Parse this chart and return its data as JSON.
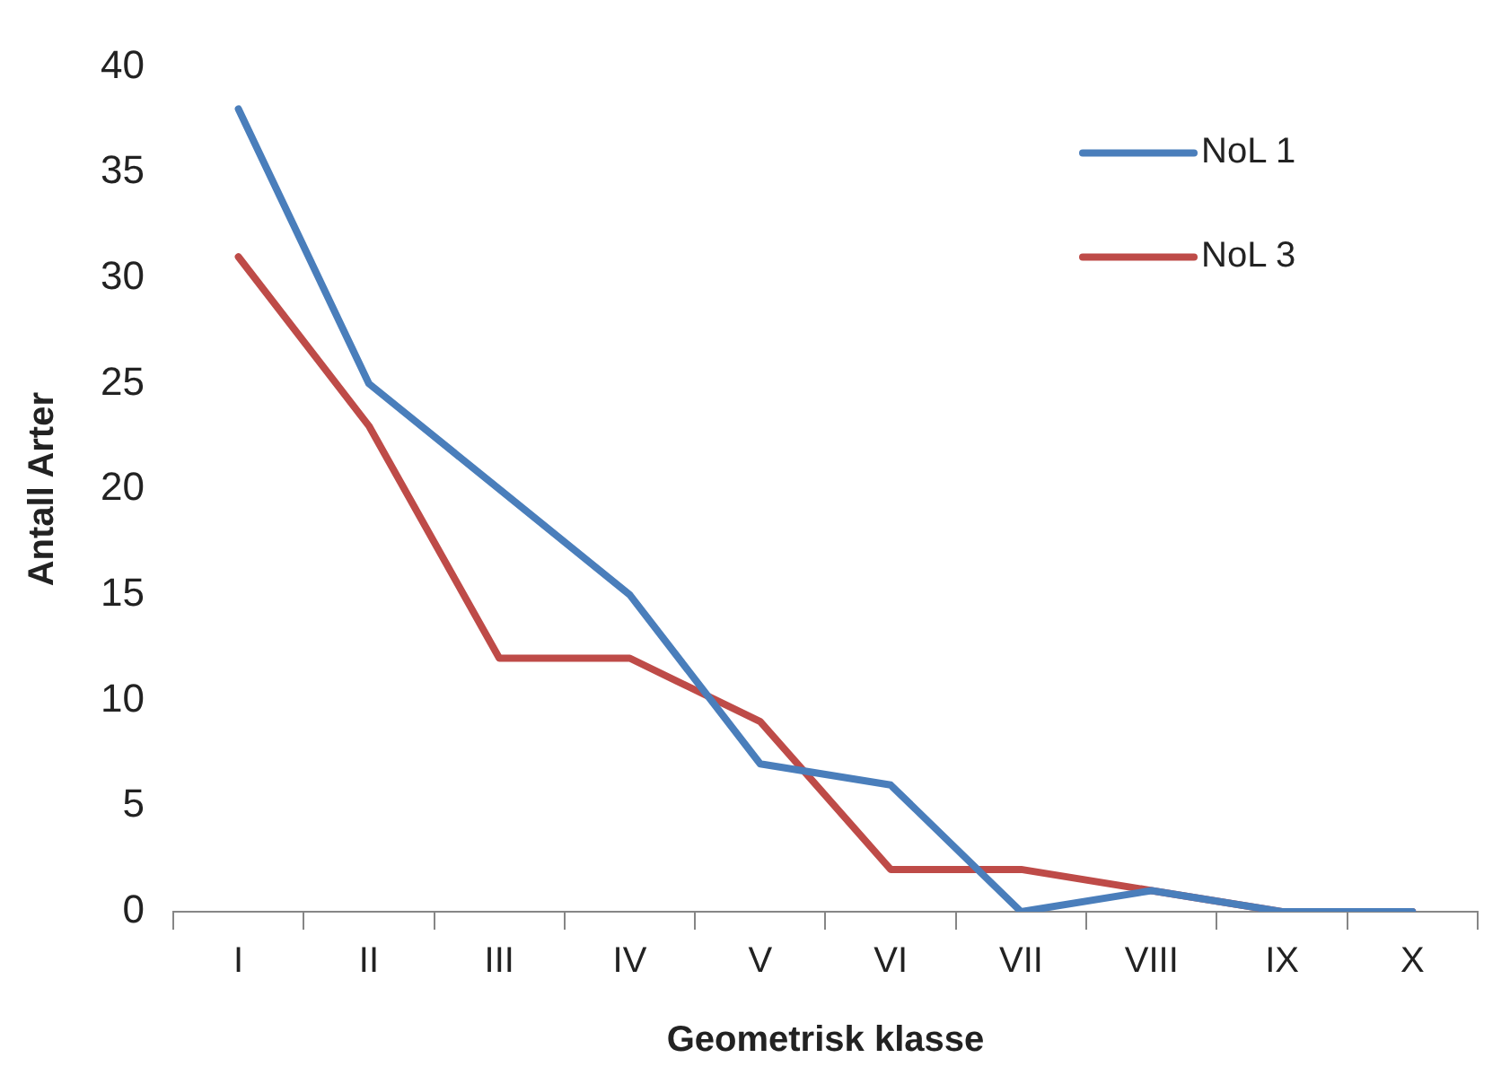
{
  "chart_data": {
    "type": "line",
    "xlabel": "Geometrisk klasse",
    "ylabel": "Antall Arter",
    "categories": [
      "I",
      "II",
      "III",
      "IV",
      "V",
      "VI",
      "VII",
      "VIII",
      "IX",
      "X"
    ],
    "series": [
      {
        "name": "NoL 1",
        "color": "#4a7ebb",
        "values": [
          38,
          25,
          20,
          15,
          7,
          6,
          0,
          1,
          0,
          0
        ]
      },
      {
        "name": "NoL 3",
        "color": "#be4b48",
        "values": [
          31,
          23,
          12,
          12,
          9,
          2,
          2,
          1,
          0,
          0
        ]
      }
    ],
    "ylim": [
      0,
      40
    ],
    "yticks": [
      0,
      5,
      10,
      15,
      20,
      25,
      30,
      35,
      40
    ],
    "grid": false,
    "legend": "top right",
    "marker": "none",
    "line_style": "solid"
  }
}
